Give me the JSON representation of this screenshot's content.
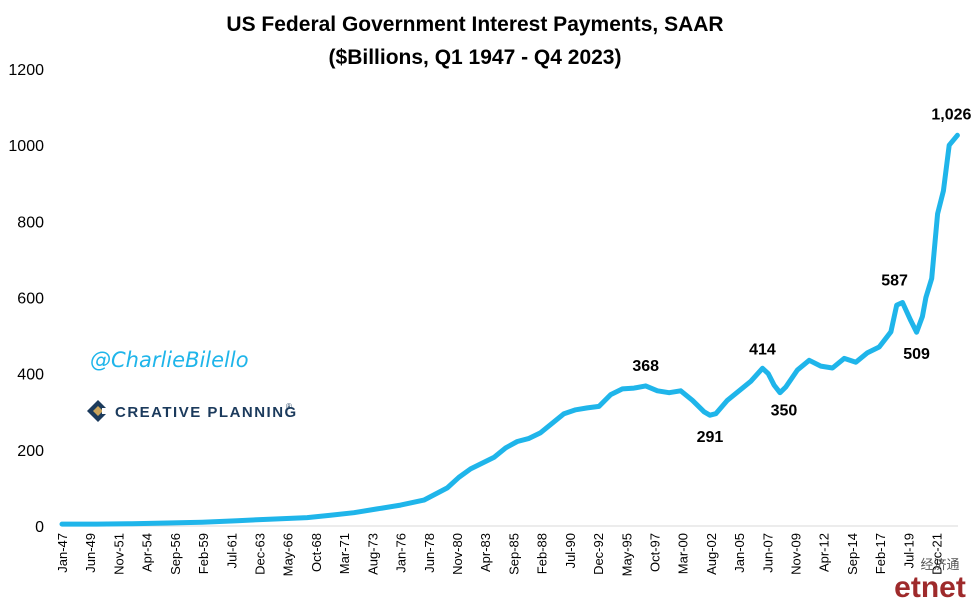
{
  "chart_data": {
    "type": "line",
    "title": "US Federal Government Interest Payments, SAAR",
    "subtitle": "($Billions, Q1 1947 - Q4 2023)",
    "xlabel": "",
    "ylabel": "",
    "ylim": [
      0,
      1200
    ],
    "yticks": [
      0,
      200,
      400,
      600,
      800,
      1000,
      1200
    ],
    "xticks": [
      "Jan-47",
      "Jun-49",
      "Nov-51",
      "Apr-54",
      "Sep-56",
      "Feb-59",
      "Jul-61",
      "Dec-63",
      "May-66",
      "Oct-68",
      "Mar-71",
      "Aug-73",
      "Jan-76",
      "Jun-78",
      "Nov-80",
      "Apr-83",
      "Sep-85",
      "Feb-88",
      "Jul-90",
      "Dec-92",
      "May-95",
      "Oct-97",
      "Mar-00",
      "Aug-02",
      "Jan-05",
      "Jun-07",
      "Nov-09",
      "Apr-12",
      "Sep-14",
      "Feb-17",
      "Jul-19",
      "Dec-21"
    ],
    "grid": false,
    "line_color": "#1fb5ea",
    "series": [
      {
        "x": [
          1947,
          1950,
          1953,
          1956,
          1959,
          1962,
          1965,
          1968,
          1970,
          1972,
          1974,
          1976,
          1978,
          1980,
          1981,
          1982,
          1984,
          1985,
          1986,
          1987,
          1988,
          1989,
          1990,
          1991,
          1992,
          1993,
          1994,
          1995,
          1996,
          1997,
          1998,
          1999,
          2000,
          2001,
          2002,
          2002.5,
          2003,
          2004,
          2005,
          2006,
          2007,
          2007.5,
          2008,
          2008.5,
          2009,
          2010,
          2011,
          2012,
          2013,
          2014,
          2015,
          2016,
          2017,
          2018,
          2018.5,
          2019,
          2019.7,
          2020.2,
          2020.7,
          2021,
          2021.5,
          2022,
          2022.5,
          2023,
          2023.7
        ],
        "values": [
          5,
          5,
          6,
          8,
          10,
          14,
          18,
          22,
          28,
          35,
          45,
          55,
          68,
          100,
          128,
          150,
          180,
          205,
          222,
          230,
          245,
          270,
          295,
          305,
          310,
          314,
          345,
          360,
          362,
          368,
          355,
          350,
          355,
          330,
          300,
          291,
          295,
          330,
          355,
          380,
          414,
          400,
          370,
          350,
          365,
          410,
          435,
          420,
          415,
          440,
          430,
          455,
          470,
          510,
          580,
          587,
          540,
          509,
          550,
          600,
          650,
          820,
          880,
          1000,
          1026
        ]
      }
    ],
    "annotations": [
      {
        "text": "368",
        "x": 1997,
        "y": 368
      },
      {
        "text": "291",
        "x": 2002.5,
        "y": 291
      },
      {
        "text": "414",
        "x": 2007,
        "y": 414
      },
      {
        "text": "350",
        "x": 2008.5,
        "y": 350
      },
      {
        "text": "587",
        "x": 2019,
        "y": 587
      },
      {
        "text": "509",
        "x": 2020.2,
        "y": 509
      },
      {
        "text": "1,026",
        "x": 2023.7,
        "y": 1026
      }
    ]
  },
  "branding": {
    "handle": "@CharlieBilello",
    "company": "CREATIVE PLANNING",
    "company_suffix": "®"
  },
  "watermark": {
    "text_top": "经济通",
    "text_logo": "etnet"
  }
}
